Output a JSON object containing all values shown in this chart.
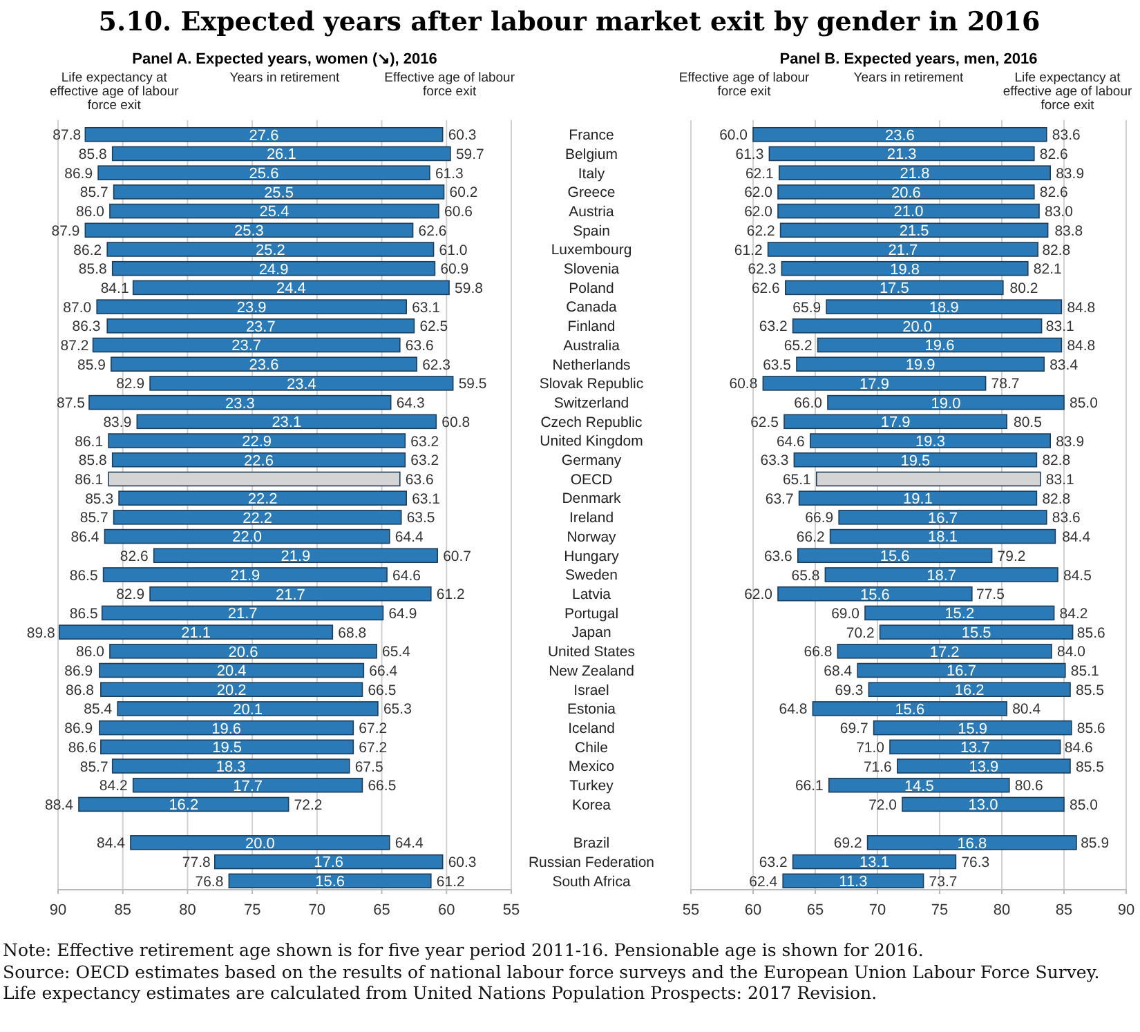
{
  "chart_data": [
    {
      "type": "bar",
      "orientation": "horizontal",
      "title": "5.10.  Expected years after labour market exit by gender in 2016",
      "subtitle": "Panel A. Expected years, women (↘), 2016",
      "annotations": [
        "Life expectancy at effective age of labour force exit",
        "Years in retirement",
        "Effective age of labour force exit",
        {
          "text": "87.8",
          "x": 87.8,
          "y": "France"
        },
        {
          "text": "60.3",
          "x": 60.3,
          "y": "France"
        },
        {
          "text": "85.8",
          "x": 85.8,
          "y": "Belgium"
        },
        {
          "text": "59.7",
          "x": 59.7,
          "y": "Belgium"
        },
        {
          "text": "86.9",
          "x": 86.9,
          "y": "Italy"
        },
        {
          "text": "61.3",
          "x": 61.3,
          "y": "Italy"
        },
        {
          "text": "85.7",
          "x": 85.7,
          "y": "Greece"
        },
        {
          "text": "60.2",
          "x": 60.2,
          "y": "Greece"
        },
        {
          "text": "86.0",
          "x": 86.0,
          "y": "Austria"
        },
        {
          "text": "60.6",
          "x": 60.6,
          "y": "Austria"
        },
        {
          "text": "87.9",
          "x": 87.9,
          "y": "Spain"
        },
        {
          "text": "62.6",
          "x": 62.6,
          "y": "Spain"
        },
        {
          "text": "86.2",
          "x": 86.2,
          "y": "Luxembourg"
        },
        {
          "text": "61.0",
          "x": 61.0,
          "y": "Luxembourg"
        },
        {
          "text": "85.8",
          "x": 85.8,
          "y": "Slovenia"
        },
        {
          "text": "60.9",
          "x": 60.9,
          "y": "Slovenia"
        },
        {
          "text": "84.1",
          "x": 84.1,
          "y": "Poland"
        },
        {
          "text": "59.8",
          "x": 59.8,
          "y": "Poland"
        },
        {
          "text": "87.0",
          "x": 87.0,
          "y": "Canada"
        },
        {
          "text": "63.1",
          "x": 63.1,
          "y": "Canada"
        },
        {
          "text": "86.3",
          "x": 86.3,
          "y": "Finland"
        },
        {
          "text": "62.5",
          "x": 62.5,
          "y": "Finland"
        },
        {
          "text": "87.2",
          "x": 87.2,
          "y": "Australia"
        },
        {
          "text": "63.6",
          "x": 63.6,
          "y": "Australia"
        },
        {
          "text": "85.9",
          "x": 85.9,
          "y": "Netherlands"
        },
        {
          "text": "62.3",
          "x": 62.3,
          "y": "Netherlands"
        },
        {
          "text": "82.9",
          "x": 82.9,
          "y": "Slovak Republic"
        },
        {
          "text": "59.5",
          "x": 59.5,
          "y": "Slovak Republic"
        },
        {
          "text": "87.5",
          "x": 87.5,
          "y": "Switzerland"
        },
        {
          "text": "64.3",
          "x": 64.3,
          "y": "Switzerland"
        },
        {
          "text": "83.9",
          "x": 83.9,
          "y": "Czech Republic"
        },
        {
          "text": "60.8",
          "x": 60.8,
          "y": "Czech Republic"
        },
        {
          "text": "86.1",
          "x": 86.1,
          "y": "United Kingdom"
        },
        {
          "text": "63.2",
          "x": 63.2,
          "y": "United Kingdom"
        },
        {
          "text": "85.8",
          "x": 85.8,
          "y": "Germany"
        },
        {
          "text": "63.2",
          "x": 63.2,
          "y": "Germany"
        },
        {
          "text": "86.1",
          "x": 86.1,
          "y": "OECD"
        },
        {
          "text": "63.6",
          "x": 63.6,
          "y": "OECD"
        },
        {
          "text": "85.3",
          "x": 85.3,
          "y": "Denmark"
        },
        {
          "text": "63.1",
          "x": 63.1,
          "y": "Denmark"
        },
        {
          "text": "85.7",
          "x": 85.7,
          "y": "Ireland"
        },
        {
          "text": "63.5",
          "x": 63.5,
          "y": "Ireland"
        },
        {
          "text": "86.4",
          "x": 86.4,
          "y": "Norway"
        },
        {
          "text": "64.4",
          "x": 64.4,
          "y": "Norway"
        },
        {
          "text": "82.6",
          "x": 82.6,
          "y": "Hungary"
        },
        {
          "text": "60.7",
          "x": 60.7,
          "y": "Hungary"
        },
        {
          "text": "86.5",
          "x": 86.5,
          "y": "Sweden"
        },
        {
          "text": "64.6",
          "x": 64.6,
          "y": "Sweden"
        },
        {
          "text": "82.9",
          "x": 82.9,
          "y": "Latvia"
        },
        {
          "text": "61.2",
          "x": 61.2,
          "y": "Latvia"
        },
        {
          "text": "86.5",
          "x": 86.5,
          "y": "Portugal"
        },
        {
          "text": "64.9",
          "x": 64.9,
          "y": "Portugal"
        },
        {
          "text": "89.8",
          "x": 89.8,
          "y": "Japan"
        },
        {
          "text": "68.8",
          "x": 68.8,
          "y": "Japan"
        },
        {
          "text": "86.0",
          "x": 86.0,
          "y": "United States"
        },
        {
          "text": "65.4",
          "x": 65.4,
          "y": "United States"
        },
        {
          "text": "86.9",
          "x": 86.9,
          "y": "New Zealand"
        },
        {
          "text": "66.4",
          "x": 66.4,
          "y": "New Zealand"
        },
        {
          "text": "86.8",
          "x": 86.8,
          "y": "Israel"
        },
        {
          "text": "66.5",
          "x": 66.5,
          "y": "Israel"
        },
        {
          "text": "85.4",
          "x": 85.4,
          "y": "Estonia"
        },
        {
          "text": "65.3",
          "x": 65.3,
          "y": "Estonia"
        },
        {
          "text": "86.9",
          "x": 86.9,
          "y": "Iceland"
        },
        {
          "text": "67.2",
          "x": 67.2,
          "y": "Iceland"
        },
        {
          "text": "86.6",
          "x": 86.6,
          "y": "Chile"
        },
        {
          "text": "67.2",
          "x": 67.2,
          "y": "Chile"
        },
        {
          "text": "85.7",
          "x": 85.7,
          "y": "Mexico"
        },
        {
          "text": "67.5",
          "x": 67.5,
          "y": "Mexico"
        },
        {
          "text": "84.2",
          "x": 84.2,
          "y": "Turkey"
        },
        {
          "text": "66.5",
          "x": 66.5,
          "y": "Turkey"
        },
        {
          "text": "88.4",
          "x": 88.4,
          "y": "Korea"
        },
        {
          "text": "72.2",
          "x": 72.2,
          "y": "Korea"
        },
        {
          "text": "84.4",
          "x": 84.4,
          "y": "Brazil"
        },
        {
          "text": "64.4",
          "x": 64.4,
          "y": "Brazil"
        },
        {
          "text": "77.8",
          "x": 77.8,
          "y": "Russian Federation"
        },
        {
          "text": "60.3",
          "x": 60.3,
          "y": "Russian Federation"
        },
        {
          "text": "76.8",
          "x": 76.8,
          "y": "South Africa"
        },
        {
          "text": "61.2",
          "x": 61.2,
          "y": "South Africa"
        }
      ],
      "categories": [
        "France",
        "Belgium",
        "Italy",
        "Greece",
        "Austria",
        "Spain",
        "Luxembourg",
        "Slovenia",
        "Poland",
        "Canada",
        "Finland",
        "Australia",
        "Netherlands",
        "Slovak Republic",
        "Switzerland",
        "Czech Republic",
        "United Kingdom",
        "Germany",
        "OECD",
        "Denmark",
        "Ireland",
        "Norway",
        "Hungary",
        "Sweden",
        "Latvia",
        "Portugal",
        "Japan",
        "United States",
        "New Zealand",
        "Israel",
        "Estonia",
        "Iceland",
        "Chile",
        "Mexico",
        "Turkey",
        "Korea",
        null,
        "Brazil",
        "Russian Federation",
        "South Africa"
      ],
      "base": [
        60.3,
        59.7,
        61.3,
        60.2,
        60.6,
        62.6,
        61.0,
        60.9,
        59.8,
        63.1,
        62.5,
        63.6,
        62.3,
        59.5,
        64.3,
        60.8,
        63.2,
        63.2,
        63.6,
        63.1,
        63.5,
        64.4,
        60.7,
        64.6,
        61.2,
        64.9,
        68.8,
        65.4,
        66.4,
        66.5,
        65.3,
        67.2,
        67.2,
        67.5,
        66.5,
        72.2,
        null,
        64.4,
        60.3,
        61.2
      ],
      "values": [
        27.6,
        26.1,
        25.6,
        25.5,
        25.4,
        25.3,
        25.2,
        24.9,
        24.4,
        23.9,
        23.7,
        23.7,
        23.6,
        23.4,
        23.3,
        23.1,
        22.9,
        22.6,
        22.5,
        22.2,
        22.2,
        22.0,
        21.9,
        21.9,
        21.7,
        21.7,
        21.1,
        20.6,
        20.4,
        20.2,
        20.1,
        19.6,
        19.5,
        18.3,
        17.7,
        16.2,
        null,
        20.0,
        17.6,
        15.6
      ],
      "value_labels": [
        "27.6",
        "26.1",
        "25.6",
        "25.5",
        "25.4",
        "25.3",
        "25.2",
        "24.9",
        "24.4",
        "23.9",
        "23.7",
        "23.7",
        "23.6",
        "23.4",
        "23.3",
        "23.1",
        "22.9",
        "22.6",
        null,
        "22.2",
        "22.2",
        "22.0",
        "21.9",
        "21.9",
        "21.7",
        "21.7",
        "21.1",
        "20.6",
        "20.4",
        "20.2",
        "20.1",
        "19.6",
        "19.5",
        "18.3",
        "17.7",
        "16.2",
        null,
        "20.0",
        "17.6",
        "15.6"
      ],
      "colors": [
        "#2a7ab8",
        "#2a7ab8",
        "#2a7ab8",
        "#2a7ab8",
        "#2a7ab8",
        "#2a7ab8",
        "#2a7ab8",
        "#2a7ab8",
        "#2a7ab8",
        "#2a7ab8",
        "#2a7ab8",
        "#2a7ab8",
        "#2a7ab8",
        "#2a7ab8",
        "#2a7ab8",
        "#2a7ab8",
        "#2a7ab8",
        "#2a7ab8",
        "#d4d4d4",
        "#2a7ab8",
        "#2a7ab8",
        "#2a7ab8",
        "#2a7ab8",
        "#2a7ab8",
        "#2a7ab8",
        "#2a7ab8",
        "#2a7ab8",
        "#2a7ab8",
        "#2a7ab8",
        "#2a7ab8",
        "#2a7ab8",
        "#2a7ab8",
        "#2a7ab8",
        "#2a7ab8",
        "#2a7ab8",
        "#2a7ab8",
        null,
        "#2a7ab8",
        "#2a7ab8",
        "#2a7ab8"
      ],
      "xlim": [
        90,
        55
      ],
      "xticks": [
        90,
        85,
        80,
        75,
        70,
        65,
        60,
        55
      ],
      "grid": "x"
    },
    {
      "type": "bar",
      "orientation": "horizontal",
      "title": "Panel B. Expected years, men, 2016",
      "annotations": [
        "Effective age of labour force exit",
        "Years in retirement",
        "Life expectancy at effective age of labour force exit",
        "Note:  Effective retirement age shown is for five year period 2011-16. Pensionable age is shown for 2016.",
        "Source:  OECD estimates based on the results of national labour force surveys and the European Union Labour Force Survey. Life expectancy estimates are calculated from United Nations Population Prospects: 2017 Revision.",
        {
          "text": "60.0",
          "x": 60.0,
          "y": "France"
        },
        {
          "text": "83.6",
          "x": 83.6,
          "y": "France"
        },
        {
          "text": "61.3",
          "x": 61.3,
          "y": "Belgium"
        },
        {
          "text": "82.6",
          "x": 82.6,
          "y": "Belgium"
        },
        {
          "text": "62.1",
          "x": 62.1,
          "y": "Italy"
        },
        {
          "text": "83.9",
          "x": 83.9,
          "y": "Italy"
        },
        {
          "text": "62.0",
          "x": 62.0,
          "y": "Greece"
        },
        {
          "text": "82.6",
          "x": 82.6,
          "y": "Greece"
        },
        {
          "text": "62.0",
          "x": 62.0,
          "y": "Austria"
        },
        {
          "text": "83.0",
          "x": 83.0,
          "y": "Austria"
        },
        {
          "text": "62.2",
          "x": 62.2,
          "y": "Spain"
        },
        {
          "text": "83.8",
          "x": 83.8,
          "y": "Spain"
        },
        {
          "text": "61.2",
          "x": 61.2,
          "y": "Luxembourg"
        },
        {
          "text": "82.8",
          "x": 82.8,
          "y": "Luxembourg"
        },
        {
          "text": "62.3",
          "x": 62.3,
          "y": "Slovenia"
        },
        {
          "text": "82.1",
          "x": 82.1,
          "y": "Slovenia"
        },
        {
          "text": "62.6",
          "x": 62.6,
          "y": "Poland"
        },
        {
          "text": "80.2",
          "x": 80.2,
          "y": "Poland"
        },
        {
          "text": "65.9",
          "x": 65.9,
          "y": "Canada"
        },
        {
          "text": "84.8",
          "x": 84.8,
          "y": "Canada"
        },
        {
          "text": "63.2",
          "x": 63.2,
          "y": "Finland"
        },
        {
          "text": "83.1",
          "x": 83.1,
          "y": "Finland"
        },
        {
          "text": "65.2",
          "x": 65.2,
          "y": "Australia"
        },
        {
          "text": "84.8",
          "x": 84.8,
          "y": "Australia"
        },
        {
          "text": "63.5",
          "x": 63.5,
          "y": "Netherlands"
        },
        {
          "text": "83.4",
          "x": 83.4,
          "y": "Netherlands"
        },
        {
          "text": "60.8",
          "x": 60.8,
          "y": "Slovak Republic"
        },
        {
          "text": "78.7",
          "x": 78.7,
          "y": "Slovak Republic"
        },
        {
          "text": "66.0",
          "x": 66.0,
          "y": "Switzerland"
        },
        {
          "text": "85.0",
          "x": 85.0,
          "y": "Switzerland"
        },
        {
          "text": "62.5",
          "x": 62.5,
          "y": "Czech Republic"
        },
        {
          "text": "80.5",
          "x": 80.5,
          "y": "Czech Republic"
        },
        {
          "text": "64.6",
          "x": 64.6,
          "y": "United Kingdom"
        },
        {
          "text": "83.9",
          "x": 83.9,
          "y": "United Kingdom"
        },
        {
          "text": "63.3",
          "x": 63.3,
          "y": "Germany"
        },
        {
          "text": "82.8",
          "x": 82.8,
          "y": "Germany"
        },
        {
          "text": "65.1",
          "x": 65.1,
          "y": "OECD"
        },
        {
          "text": "83.1",
          "x": 83.1,
          "y": "OECD"
        },
        {
          "text": "63.7",
          "x": 63.7,
          "y": "Denmark"
        },
        {
          "text": "82.8",
          "x": 82.8,
          "y": "Denmark"
        },
        {
          "text": "66.9",
          "x": 66.9,
          "y": "Ireland"
        },
        {
          "text": "83.6",
          "x": 83.6,
          "y": "Ireland"
        },
        {
          "text": "66.2",
          "x": 66.2,
          "y": "Norway"
        },
        {
          "text": "84.4",
          "x": 84.4,
          "y": "Norway"
        },
        {
          "text": "63.6",
          "x": 63.6,
          "y": "Hungary"
        },
        {
          "text": "79.2",
          "x": 79.2,
          "y": "Hungary"
        },
        {
          "text": "65.8",
          "x": 65.8,
          "y": "Sweden"
        },
        {
          "text": "84.5",
          "x": 84.5,
          "y": "Sweden"
        },
        {
          "text": "62.0",
          "x": 62.0,
          "y": "Latvia"
        },
        {
          "text": "77.5",
          "x": 77.5,
          "y": "Latvia"
        },
        {
          "text": "69.0",
          "x": 69.0,
          "y": "Portugal"
        },
        {
          "text": "84.2",
          "x": 84.2,
          "y": "Portugal"
        },
        {
          "text": "70.2",
          "x": 70.2,
          "y": "Japan"
        },
        {
          "text": "85.6",
          "x": 85.6,
          "y": "Japan"
        },
        {
          "text": "66.8",
          "x": 66.8,
          "y": "United States"
        },
        {
          "text": "84.0",
          "x": 84.0,
          "y": "United States"
        },
        {
          "text": "68.4",
          "x": 68.4,
          "y": "New Zealand"
        },
        {
          "text": "85.1",
          "x": 85.1,
          "y": "New Zealand"
        },
        {
          "text": "69.3",
          "x": 69.3,
          "y": "Israel"
        },
        {
          "text": "85.5",
          "x": 85.5,
          "y": "Israel"
        },
        {
          "text": "64.8",
          "x": 64.8,
          "y": "Estonia"
        },
        {
          "text": "80.4",
          "x": 80.4,
          "y": "Estonia"
        },
        {
          "text": "69.7",
          "x": 69.7,
          "y": "Iceland"
        },
        {
          "text": "85.6",
          "x": 85.6,
          "y": "Iceland"
        },
        {
          "text": "71.0",
          "x": 71.0,
          "y": "Chile"
        },
        {
          "text": "84.6",
          "x": 84.6,
          "y": "Chile"
        },
        {
          "text": "71.6",
          "x": 71.6,
          "y": "Mexico"
        },
        {
          "text": "85.5",
          "x": 85.5,
          "y": "Mexico"
        },
        {
          "text": "66.1",
          "x": 66.1,
          "y": "Turkey"
        },
        {
          "text": "80.6",
          "x": 80.6,
          "y": "Turkey"
        },
        {
          "text": "72.0",
          "x": 72.0,
          "y": "Korea"
        },
        {
          "text": "85.0",
          "x": 85.0,
          "y": "Korea"
        },
        {
          "text": "69.2",
          "x": 69.2,
          "y": "Brazil"
        },
        {
          "text": "85.9",
          "x": 85.9,
          "y": "Brazil"
        },
        {
          "text": "63.2",
          "x": 63.2,
          "y": "Russian Federation"
        },
        {
          "text": "76.3",
          "x": 76.3,
          "y": "Russian Federation"
        },
        {
          "text": "62.4",
          "x": 62.4,
          "y": "South Africa"
        },
        {
          "text": "73.7",
          "x": 73.7,
          "y": "South Africa"
        }
      ],
      "categories": [
        "France",
        "Belgium",
        "Italy",
        "Greece",
        "Austria",
        "Spain",
        "Luxembourg",
        "Slovenia",
        "Poland",
        "Canada",
        "Finland",
        "Australia",
        "Netherlands",
        "Slovak Republic",
        "Switzerland",
        "Czech Republic",
        "United Kingdom",
        "Germany",
        "OECD",
        "Denmark",
        "Ireland",
        "Norway",
        "Hungary",
        "Sweden",
        "Latvia",
        "Portugal",
        "Japan",
        "United States",
        "New Zealand",
        "Israel",
        "Estonia",
        "Iceland",
        "Chile",
        "Mexico",
        "Turkey",
        "Korea",
        null,
        "Brazil",
        "Russian Federation",
        "South Africa"
      ],
      "base": [
        60.0,
        61.3,
        62.1,
        62.0,
        62.0,
        62.2,
        61.2,
        62.3,
        62.6,
        65.9,
        63.2,
        65.2,
        63.5,
        60.8,
        66.0,
        62.5,
        64.6,
        63.3,
        65.1,
        63.7,
        66.9,
        66.2,
        63.6,
        65.8,
        62.0,
        69.0,
        70.2,
        66.8,
        68.4,
        69.3,
        64.8,
        69.7,
        71.0,
        71.6,
        66.1,
        72.0,
        null,
        69.2,
        63.2,
        62.4
      ],
      "values": [
        23.6,
        21.3,
        21.8,
        20.6,
        21.0,
        21.5,
        21.7,
        19.8,
        17.5,
        18.9,
        20.0,
        19.6,
        19.9,
        17.9,
        19.0,
        17.9,
        19.3,
        19.5,
        18.0,
        19.1,
        16.7,
        18.1,
        15.6,
        18.7,
        15.6,
        15.2,
        15.5,
        17.2,
        16.7,
        16.2,
        15.6,
        15.9,
        13.7,
        13.9,
        14.5,
        13.0,
        null,
        16.8,
        13.1,
        11.3
      ],
      "value_labels": [
        "23.6",
        "21.3",
        "21.8",
        "20.6",
        "21.0",
        "21.5",
        "21.7",
        "19.8",
        "17.5",
        "18.9",
        "20.0",
        "19.6",
        "19.9",
        "17.9",
        "19.0",
        "17.9",
        "19.3",
        "19.5",
        null,
        "19.1",
        "16.7",
        "18.1",
        "15.6",
        "18.7",
        "15.6",
        "15.2",
        "15.5",
        "17.2",
        "16.7",
        "16.2",
        "15.6",
        "15.9",
        "13.7",
        "13.9",
        "14.5",
        "13.0",
        null,
        "16.8",
        "13.1",
        "11.3"
      ],
      "colors": [
        "#2a7ab8",
        "#2a7ab8",
        "#2a7ab8",
        "#2a7ab8",
        "#2a7ab8",
        "#2a7ab8",
        "#2a7ab8",
        "#2a7ab8",
        "#2a7ab8",
        "#2a7ab8",
        "#2a7ab8",
        "#2a7ab8",
        "#2a7ab8",
        "#2a7ab8",
        "#2a7ab8",
        "#2a7ab8",
        "#2a7ab8",
        "#2a7ab8",
        "#d4d4d4",
        "#2a7ab8",
        "#2a7ab8",
        "#2a7ab8",
        "#2a7ab8",
        "#2a7ab8",
        "#2a7ab8",
        "#2a7ab8",
        "#2a7ab8",
        "#2a7ab8",
        "#2a7ab8",
        "#2a7ab8",
        "#2a7ab8",
        "#2a7ab8",
        "#2a7ab8",
        "#2a7ab8",
        "#2a7ab8",
        "#2a7ab8",
        null,
        "#2a7ab8",
        "#2a7ab8",
        "#2a7ab8"
      ],
      "xlim": [
        55,
        90
      ],
      "xticks": [
        55,
        60,
        65,
        70,
        75,
        80,
        85,
        90
      ],
      "grid": "x",
      "tick_labels": "x"
    }
  ]
}
